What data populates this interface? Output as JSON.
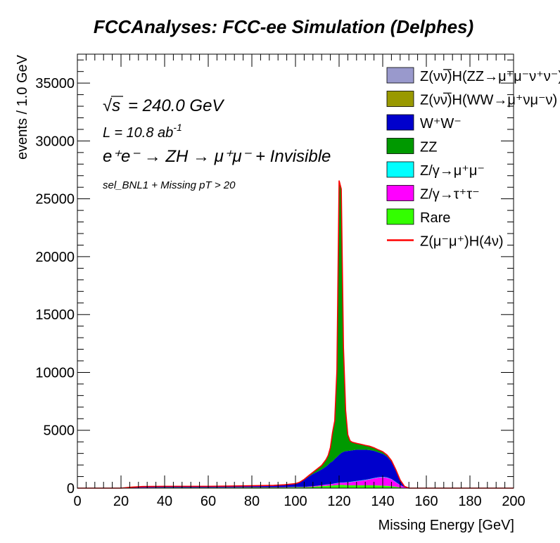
{
  "title": "FCCAnalyses: FCC-ee Simulation (Delphes)",
  "annotations": {
    "sqrt_s_symbol": "√s",
    "energy": "= 240.0 GeV",
    "lumi_base": "L = 10.8 ab",
    "lumi_exp": "-1",
    "process": "e⁺e⁻ → ZH → μ⁺μ⁻ + Invisible",
    "selection": "sel_BNL1 + Missing pT > 20"
  },
  "legend": [
    {
      "label": "Z(νν̅)H(ZZ→μ⁺μ⁻ν⁺ν⁻)",
      "color": "#9999cc",
      "kind": "box"
    },
    {
      "label": "Z(νν̅)H(WW→μ⁺νμ⁻ν)",
      "color": "#999900",
      "kind": "box"
    },
    {
      "label": "W⁺W⁻",
      "color": "#0000cc",
      "kind": "box"
    },
    {
      "label": "ZZ",
      "color": "#009900",
      "kind": "box"
    },
    {
      "label": "Z/γ→μ⁺μ⁻",
      "color": "#00ffff",
      "kind": "box"
    },
    {
      "label": "Z/γ→τ⁺τ⁻",
      "color": "#ff00ff",
      "kind": "box"
    },
    {
      "label": "Rare",
      "color": "#33ff00",
      "kind": "box"
    },
    {
      "label": "Z(μ⁻μ⁺)H(4ν)",
      "color": "#ff0000",
      "kind": "line"
    }
  ],
  "chart_data": {
    "type": "area",
    "title": "FCCAnalyses: FCC-ee Simulation (Delphes)",
    "xlabel": "Missing Energy [GeV]",
    "ylabel": "events / 1.0 GeV",
    "xlim": [
      0,
      200
    ],
    "ylim": [
      0,
      37500
    ],
    "xticks": [
      0,
      20,
      40,
      60,
      80,
      100,
      120,
      140,
      160,
      180,
      200
    ],
    "yticks": [
      0,
      5000,
      10000,
      15000,
      20000,
      25000,
      30000,
      35000
    ],
    "stacked": true,
    "x": [
      0,
      20,
      25,
      30,
      40,
      50,
      60,
      70,
      80,
      90,
      95,
      100,
      102,
      104,
      106,
      108,
      110,
      112,
      114,
      115,
      116,
      117,
      118,
      119,
      120,
      121,
      122,
      123,
      124,
      125,
      126,
      128,
      130,
      132,
      134,
      136,
      138,
      140,
      142,
      144,
      146,
      148,
      150,
      152,
      155,
      160,
      180,
      200
    ],
    "series": [
      {
        "name": "Rare",
        "color": "#33ff00",
        "values": [
          0,
          0,
          20,
          40,
          50,
          50,
          50,
          50,
          60,
          60,
          70,
          80,
          80,
          80,
          100,
          120,
          150,
          180,
          200,
          210,
          220,
          230,
          250,
          260,
          280,
          280,
          270,
          260,
          250,
          240,
          240,
          240,
          240,
          240,
          240,
          240,
          230,
          220,
          200,
          170,
          120,
          60,
          20,
          0,
          0,
          0,
          0,
          0
        ]
      },
      {
        "name": "Z/γ→τ⁺τ⁻",
        "color": "#ff00ff",
        "values": [
          0,
          0,
          10,
          10,
          10,
          10,
          10,
          20,
          20,
          20,
          20,
          30,
          30,
          30,
          40,
          50,
          60,
          80,
          100,
          110,
          120,
          130,
          150,
          160,
          180,
          190,
          200,
          220,
          240,
          270,
          300,
          350,
          400,
          450,
          520,
          600,
          680,
          720,
          700,
          600,
          400,
          200,
          60,
          0,
          0,
          0,
          0,
          0
        ]
      },
      {
        "name": "Z/γ→μ⁺μ⁻",
        "color": "#00ffff",
        "values": [
          0,
          0,
          0,
          0,
          0,
          0,
          0,
          0,
          0,
          0,
          0,
          0,
          0,
          0,
          0,
          0,
          0,
          0,
          10,
          10,
          10,
          10,
          20,
          20,
          20,
          20,
          20,
          20,
          20,
          30,
          30,
          30,
          30,
          30,
          30,
          30,
          30,
          30,
          30,
          20,
          20,
          10,
          0,
          0,
          0,
          0,
          0,
          0
        ]
      },
      {
        "name": "W⁺W⁻",
        "color": "#0000cc",
        "values": [
          0,
          0,
          60,
          90,
          100,
          100,
          100,
          110,
          130,
          160,
          200,
          280,
          400,
          600,
          850,
          1050,
          1200,
          1350,
          1550,
          1700,
          1850,
          1950,
          2100,
          2250,
          2400,
          2550,
          2650,
          2700,
          2700,
          2700,
          2700,
          2700,
          2650,
          2600,
          2500,
          2350,
          2150,
          2000,
          1800,
          1500,
          1000,
          400,
          60,
          0,
          0,
          0,
          0,
          0
        ]
      },
      {
        "name": "ZZ",
        "color": "#009900",
        "values": [
          0,
          0,
          0,
          0,
          0,
          0,
          0,
          0,
          0,
          0,
          0,
          0,
          10,
          50,
          80,
          150,
          250,
          350,
          600,
          800,
          1300,
          2500,
          3300,
          7500,
          23700,
          22800,
          9000,
          3500,
          1400,
          850,
          700,
          550,
          470,
          380,
          330,
          270,
          220,
          180,
          130,
          90,
          60,
          30,
          10,
          0,
          0,
          0,
          0,
          0
        ]
      },
      {
        "name": "Z(νν̅)H(WW→μ⁺νμ⁻ν)",
        "color": "#999900",
        "values": [
          0,
          0,
          0,
          0,
          0,
          0,
          0,
          0,
          0,
          0,
          0,
          0,
          0,
          0,
          0,
          0,
          0,
          0,
          0,
          0,
          0,
          0,
          0,
          0,
          0,
          0,
          0,
          0,
          0,
          0,
          0,
          0,
          0,
          0,
          0,
          0,
          0,
          0,
          0,
          0,
          0,
          0,
          0,
          0,
          0,
          0,
          0,
          0
        ]
      },
      {
        "name": "Z(νν̅)H(ZZ→μ⁺μ⁻ν⁺ν⁻)",
        "color": "#9999cc",
        "values": [
          0,
          0,
          0,
          0,
          0,
          0,
          0,
          0,
          0,
          0,
          0,
          0,
          0,
          0,
          0,
          0,
          0,
          0,
          0,
          0,
          0,
          0,
          0,
          0,
          0,
          0,
          0,
          0,
          0,
          0,
          0,
          0,
          0,
          0,
          0,
          0,
          0,
          0,
          0,
          0,
          0,
          0,
          0,
          0,
          0,
          0,
          0,
          0
        ]
      }
    ],
    "signal": {
      "name": "Z(μ⁻μ⁺)H(4ν)",
      "color": "#ff0000",
      "note": "drawn on top of stack"
    }
  }
}
